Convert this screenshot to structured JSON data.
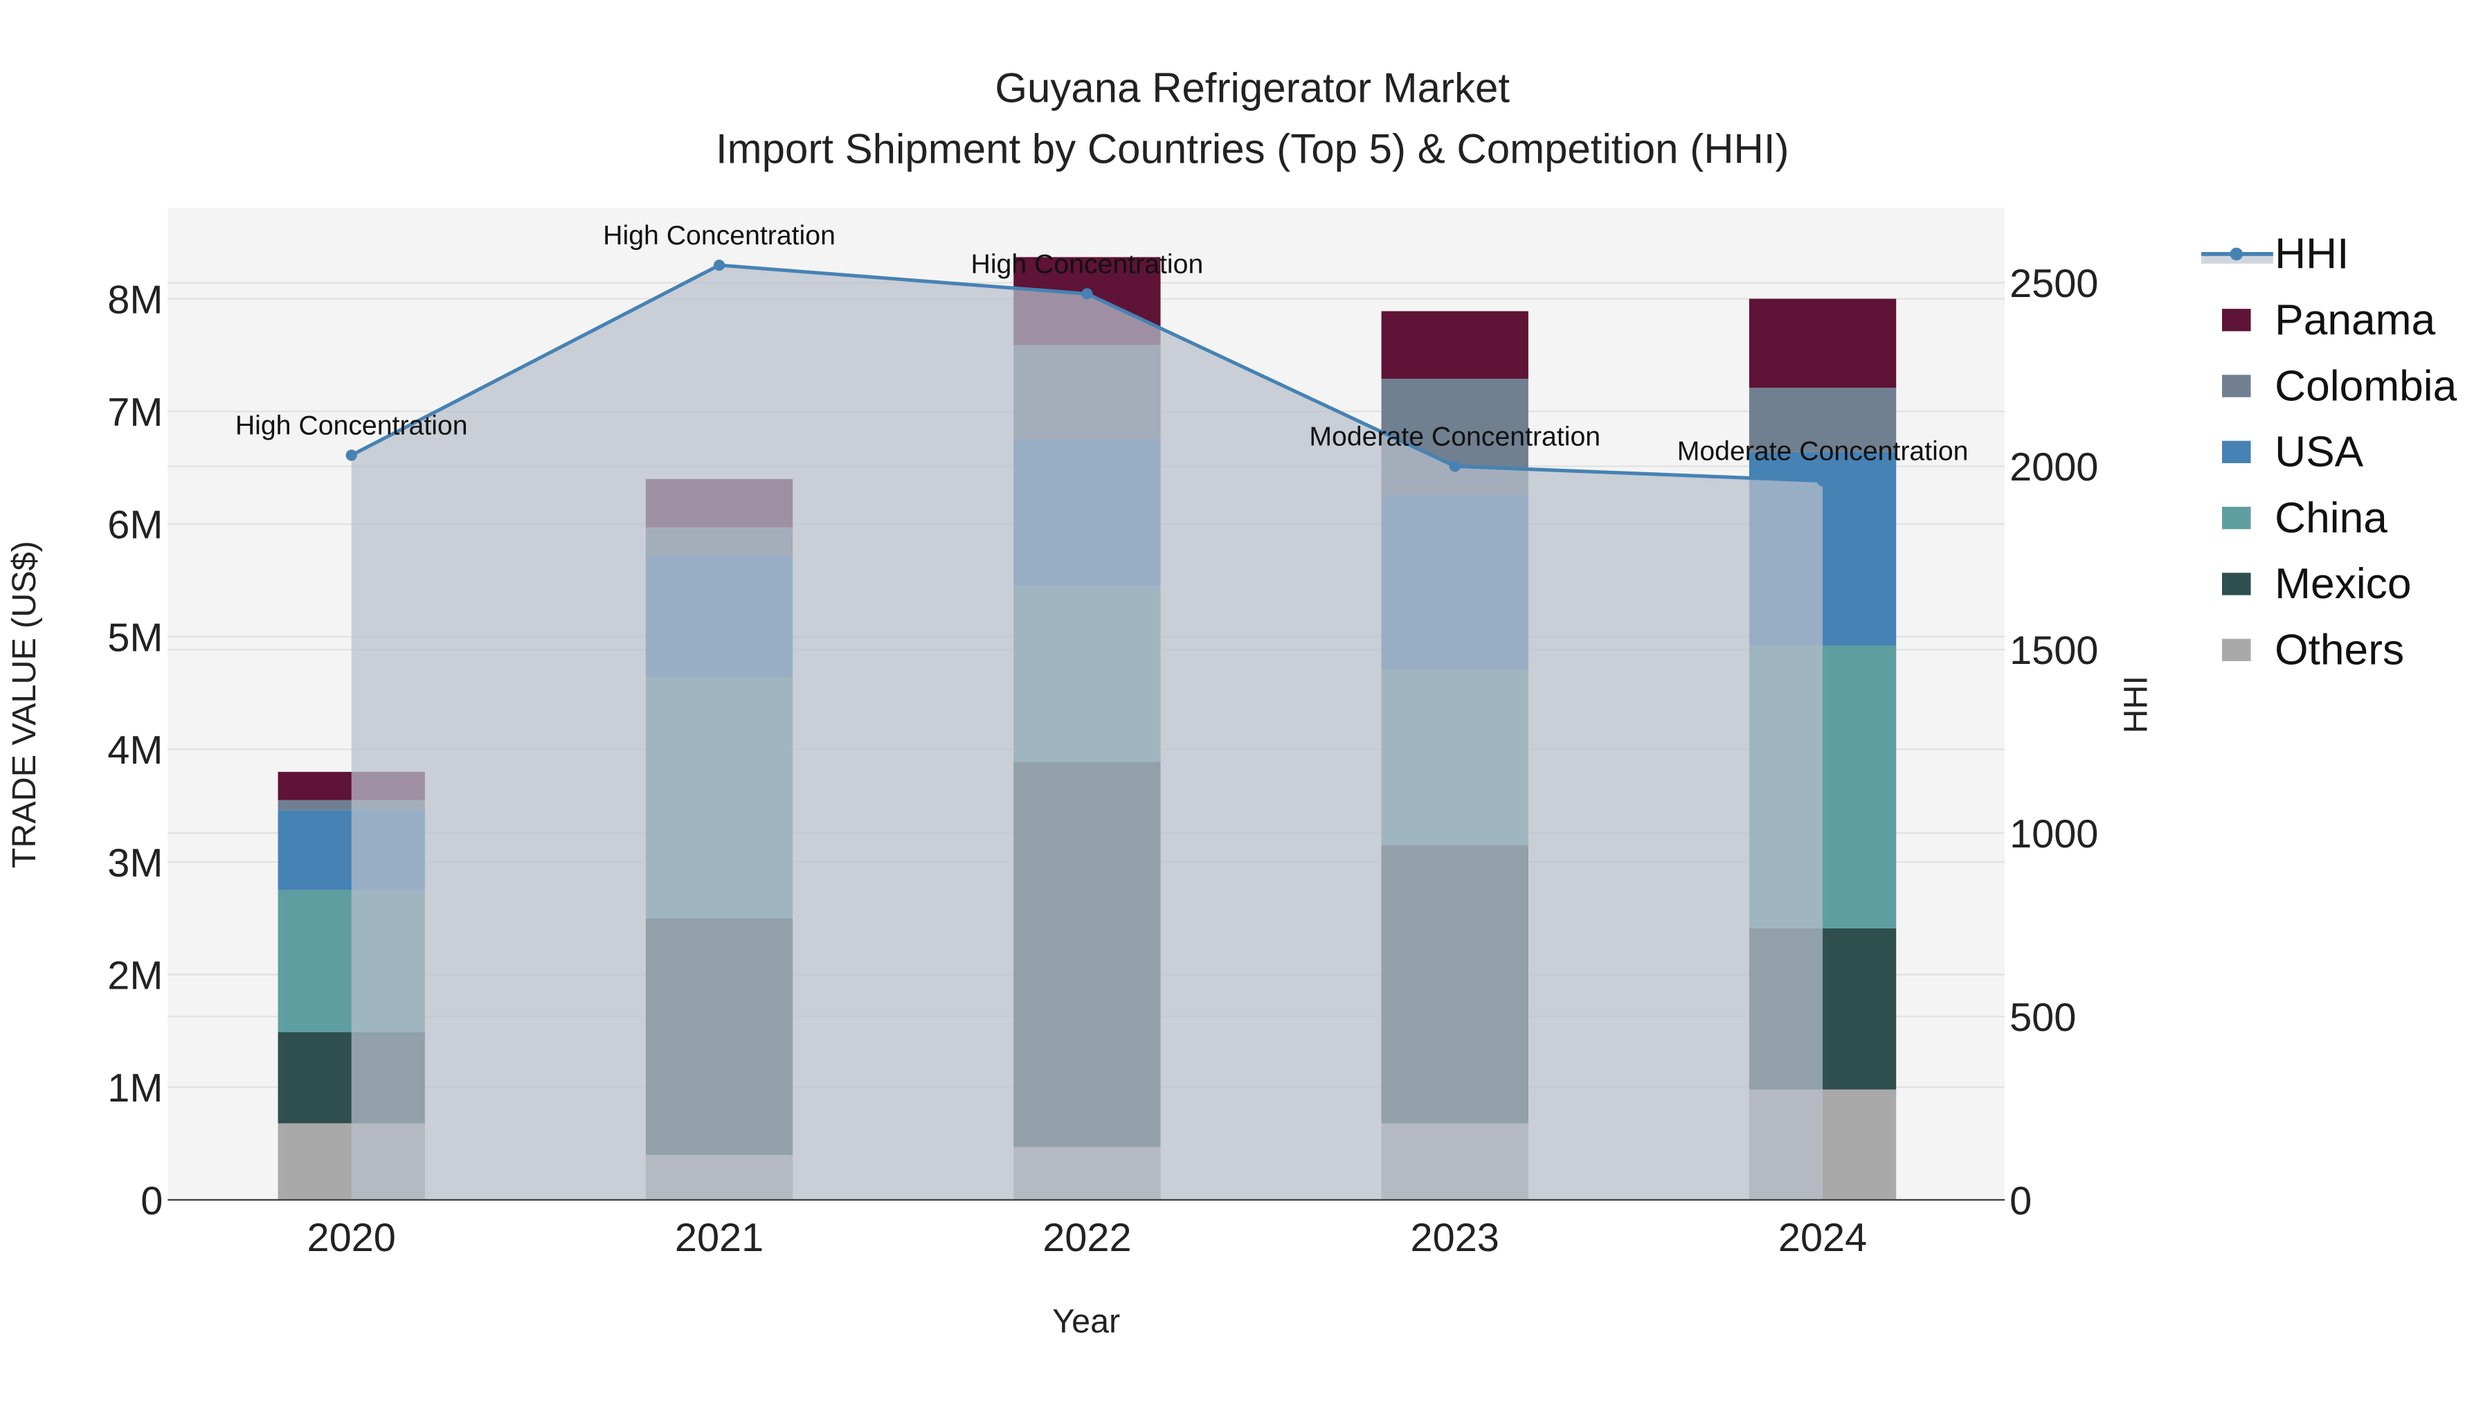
{
  "chart_data": {
    "type": "bar",
    "stacked": true,
    "title": "Guyana Refrigerator Market",
    "subtitle": "Import Shipment by Countries (Top 5) & Competition (HHI)",
    "xlabel": "Year",
    "ylabel": "TRADE VALUE (US$)",
    "y2label": "HHI",
    "categories": [
      "2020",
      "2021",
      "2022",
      "2023",
      "2024"
    ],
    "ylim": [
      0,
      8800000
    ],
    "y2lim": [
      0,
      2700
    ],
    "yticks": [
      0,
      1000000,
      2000000,
      3000000,
      4000000,
      5000000,
      6000000,
      7000000,
      8000000
    ],
    "ytick_labels": [
      "0",
      "1M",
      "2M",
      "3M",
      "4M",
      "5M",
      "6M",
      "7M",
      "8M"
    ],
    "y2ticks": [
      0,
      500,
      1000,
      1500,
      2000,
      2500
    ],
    "y2tick_labels": [
      "0",
      "500",
      "1000",
      "1500",
      "2000",
      "2500"
    ],
    "grid": true,
    "legend_position": "right",
    "series": [
      {
        "name": "Others",
        "color": "#a9a9a9",
        "values": [
          680000,
          400000,
          470000,
          680000,
          980000
        ]
      },
      {
        "name": "Mexico",
        "color": "#2f4f4f",
        "values": [
          810000,
          2100000,
          3420000,
          2470000,
          1430000
        ]
      },
      {
        "name": "China",
        "color": "#5f9ea0",
        "values": [
          1260000,
          2140000,
          1560000,
          1560000,
          2510000
        ]
      },
      {
        "name": "USA",
        "color": "#4682b4",
        "values": [
          710000,
          1080000,
          1300000,
          1550000,
          1720000
        ]
      },
      {
        "name": "Colombia",
        "color": "#708090",
        "values": [
          90000,
          250000,
          840000,
          1030000,
          570000
        ]
      },
      {
        "name": "Panama",
        "color": "#5f1336",
        "values": [
          250000,
          430000,
          780000,
          600000,
          790000
        ]
      }
    ],
    "hhi": {
      "name": "HHI",
      "color": "#4682b4",
      "values": [
        2030,
        2548,
        2470,
        2000,
        1960
      ],
      "annotations": [
        "High Concentration",
        "High Concentration",
        "High Concentration",
        "Moderate Concentration",
        "Moderate Concentration"
      ]
    },
    "legend": [
      "HHI",
      "Panama",
      "Colombia",
      "USA",
      "China",
      "Mexico",
      "Others"
    ]
  }
}
